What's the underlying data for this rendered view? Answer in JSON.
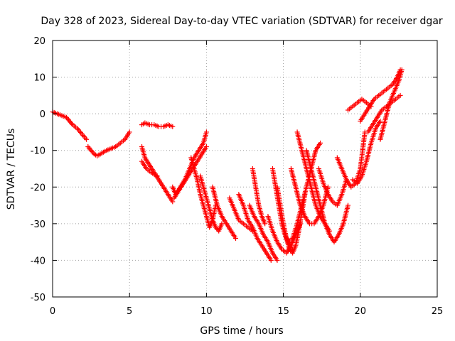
{
  "chart_data": {
    "type": "scatter",
    "title": "Day 328 of 2023, Sidereal Day-to-day VTEC variation (SDTVAR) for receiver dgar",
    "xlabel": "GPS time / hours",
    "ylabel": "SDTVAR / TECUs",
    "xlim": [
      0,
      25
    ],
    "ylim": [
      -50,
      20
    ],
    "xticks": [
      0,
      5,
      10,
      15,
      20,
      25
    ],
    "yticks": [
      -50,
      -40,
      -30,
      -20,
      -10,
      0,
      10,
      20
    ],
    "grid": true,
    "marker": "+",
    "color": "#ff0000",
    "series": [
      {
        "x": [
          0.0,
          0.3,
          0.6,
          0.9,
          1.1,
          1.3,
          1.6,
          1.9,
          2.2
        ],
        "y": [
          0.5,
          0,
          -0.5,
          -1,
          -2,
          -3,
          -4,
          -5.5,
          -7
        ]
      },
      {
        "x": [
          2.3,
          2.5,
          2.7,
          2.9,
          3.1,
          3.3,
          3.5,
          3.8,
          4.1,
          4.4,
          4.7,
          5.0
        ],
        "y": [
          -9,
          -10,
          -11,
          -11.5,
          -11,
          -10.5,
          -10,
          -9.5,
          -9,
          -8,
          -7,
          -5
        ]
      },
      {
        "x": [
          5.8,
          6.0,
          6.3,
          6.6,
          6.9,
          7.2,
          7.5,
          7.8
        ],
        "y": [
          -3,
          -2.5,
          -3,
          -3,
          -3.5,
          -3.5,
          -3,
          -3.5
        ]
      },
      {
        "x": [
          5.8,
          6.0,
          6.3,
          6.6,
          6.9,
          7.2,
          7.5,
          7.8
        ],
        "y": [
          -9,
          -12,
          -14,
          -16,
          -18,
          -20,
          -22,
          -24
        ]
      },
      {
        "x": [
          5.8,
          6.1,
          6.4,
          6.8
        ],
        "y": [
          -13,
          -15,
          -16,
          -17
        ]
      },
      {
        "x": [
          7.8,
          8.0,
          8.3,
          8.6,
          8.9,
          9.2,
          9.5,
          9.8,
          10.0
        ],
        "y": [
          -20,
          -22,
          -20,
          -18,
          -15,
          -12,
          -10,
          -8,
          -5
        ]
      },
      {
        "x": [
          7.9,
          8.2,
          8.5,
          8.8,
          9.1,
          9.4,
          9.7,
          10.0
        ],
        "y": [
          -23,
          -21,
          -19,
          -17,
          -15,
          -13,
          -11,
          -9
        ]
      },
      {
        "x": [
          9.0,
          9.2,
          9.4,
          9.6,
          9.8,
          10.0,
          10.2,
          10.4,
          10.6
        ],
        "y": [
          -12,
          -15,
          -18,
          -22,
          -25,
          -28,
          -31,
          -29,
          -25
        ]
      },
      {
        "x": [
          9.6,
          9.8,
          10.0,
          10.2,
          10.4,
          10.6,
          10.8,
          11.0
        ],
        "y": [
          -17,
          -20,
          -23,
          -26,
          -29,
          -31,
          -32,
          -30
        ]
      },
      {
        "x": [
          10.4,
          10.7,
          11.0,
          11.3,
          11.6,
          11.9
        ],
        "y": [
          -20,
          -25,
          -28,
          -30,
          -32,
          -34
        ]
      },
      {
        "x": [
          11.5,
          11.8,
          12.1,
          12.4,
          12.7,
          13.0
        ],
        "y": [
          -23,
          -26,
          -29,
          -30,
          -31,
          -32
        ]
      },
      {
        "x": [
          12.1,
          12.4,
          12.7,
          13.0,
          13.3,
          13.6,
          13.9,
          14.2
        ],
        "y": [
          -22,
          -25,
          -29,
          -31,
          -34,
          -36,
          -38,
          -40
        ]
      },
      {
        "x": [
          12.8,
          13.1,
          13.4,
          13.7,
          14.0,
          14.3,
          14.6
        ],
        "y": [
          -25,
          -28,
          -30,
          -33,
          -35,
          -38,
          -40
        ]
      },
      {
        "x": [
          13.0,
          13.2,
          13.4,
          13.6,
          13.8
        ],
        "y": [
          -15,
          -20,
          -25,
          -28,
          -30
        ]
      },
      {
        "x": [
          14.0,
          14.3,
          14.6,
          14.9,
          15.2,
          15.5,
          15.8,
          16.1
        ],
        "y": [
          -28,
          -32,
          -35,
          -37,
          -38,
          -36,
          -33,
          -30
        ]
      },
      {
        "x": [
          14.3,
          14.5,
          14.7,
          14.9,
          15.1,
          15.3,
          15.5
        ],
        "y": [
          -15,
          -20,
          -25,
          -30,
          -33,
          -35,
          -37
        ]
      },
      {
        "x": [
          14.6,
          14.8,
          15.0,
          15.2,
          15.4,
          15.6,
          15.8,
          16.0,
          16.2,
          16.4
        ],
        "y": [
          -20,
          -25,
          -30,
          -34,
          -37,
          -38,
          -36,
          -32,
          -27,
          -22
        ]
      },
      {
        "x": [
          15.3,
          15.6,
          15.9,
          16.2,
          16.5,
          16.8,
          17.1,
          17.4
        ],
        "y": [
          -35,
          -34,
          -30,
          -25,
          -20,
          -15,
          -10,
          -8
        ]
      },
      {
        "x": [
          15.5,
          15.8,
          16.1,
          16.4,
          16.7,
          17.0,
          17.3,
          17.6,
          17.9
        ],
        "y": [
          -15,
          -20,
          -25,
          -28,
          -30,
          -30,
          -28,
          -25,
          -20
        ]
      },
      {
        "x": [
          15.9,
          16.2,
          16.5,
          16.8,
          17.1,
          17.4,
          17.7,
          18.0
        ],
        "y": [
          -5,
          -10,
          -15,
          -20,
          -25,
          -28,
          -30,
          -32
        ]
      },
      {
        "x": [
          16.5,
          16.8,
          17.1,
          17.4,
          17.7,
          18.0,
          18.3,
          18.6,
          18.9,
          19.2
        ],
        "y": [
          -10,
          -15,
          -20,
          -25,
          -30,
          -33,
          -35,
          -33,
          -30,
          -25
        ]
      },
      {
        "x": [
          17.3,
          17.6,
          17.9,
          18.2,
          18.5,
          18.8,
          19.1
        ],
        "y": [
          -15,
          -19,
          -22,
          -24,
          -25,
          -22,
          -18
        ]
      },
      {
        "x": [
          18.5,
          18.8,
          19.1,
          19.4,
          19.7,
          20.0,
          20.3
        ],
        "y": [
          -12,
          -15,
          -18,
          -20,
          -19,
          -15,
          -5
        ]
      },
      {
        "x": [
          19.5,
          19.8,
          20.1,
          20.4,
          20.7,
          21.0,
          21.3
        ],
        "y": [
          -18,
          -19,
          -17,
          -13,
          -8,
          -4,
          -2
        ]
      },
      {
        "x": [
          20.0,
          20.3,
          20.6,
          20.9,
          21.2,
          21.5,
          21.8,
          22.1,
          22.4,
          22.6
        ],
        "y": [
          -2,
          0,
          2,
          4,
          5,
          6,
          7,
          8,
          10,
          12
        ]
      },
      {
        "x": [
          19.2,
          19.5,
          19.8,
          20.1,
          20.4,
          20.7
        ],
        "y": [
          1,
          2,
          3,
          4,
          3,
          2
        ]
      },
      {
        "x": [
          20.5,
          20.8,
          21.1,
          21.4,
          21.7,
          22.0,
          22.3,
          22.6
        ],
        "y": [
          -5,
          -3,
          -1,
          1,
          2,
          3,
          4,
          5
        ]
      },
      {
        "x": [
          21.3,
          21.6,
          21.9,
          22.2,
          22.5,
          22.7
        ],
        "y": [
          -7,
          -2,
          3,
          6,
          9,
          12
        ]
      }
    ]
  }
}
